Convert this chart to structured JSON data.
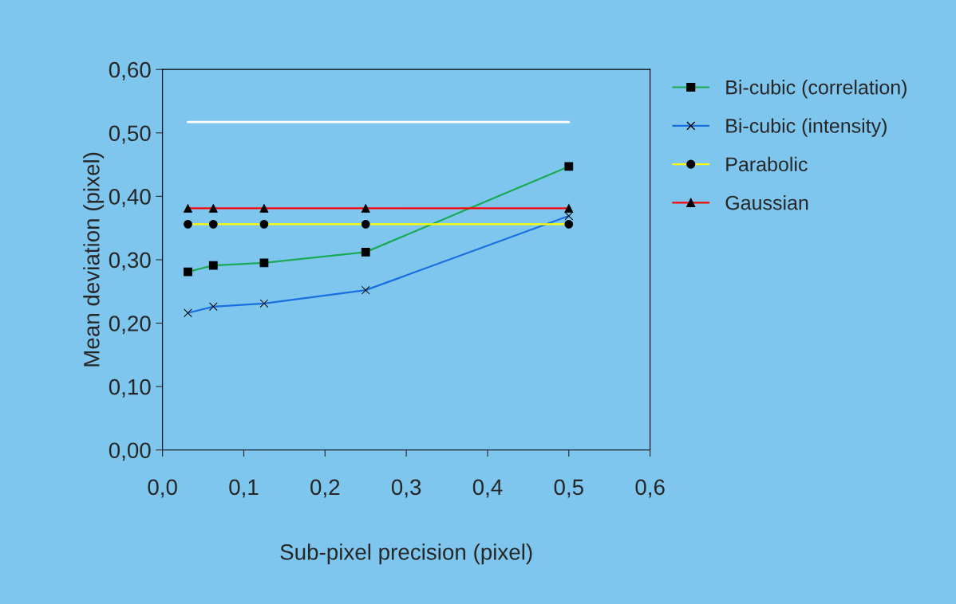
{
  "chart_data": {
    "type": "line",
    "xlabel": "Sub-pixel precision (pixel)",
    "ylabel": "Mean deviation (pixel)",
    "x": [
      0.03125,
      0.0625,
      0.125,
      0.25,
      0.5
    ],
    "series": [
      {
        "name": "Bi-cubic (correlation)",
        "color": "#1aaa55",
        "marker": "square",
        "values": [
          0.281,
          0.291,
          0.295,
          0.312,
          0.447
        ]
      },
      {
        "name": "Bi-cubic (intensity)",
        "color": "#1a6fe0",
        "marker": "cross",
        "values": [
          0.216,
          0.226,
          0.231,
          0.252,
          0.369
        ]
      },
      {
        "name": "Parabolic",
        "color": "#ffff00",
        "marker": "circle",
        "values": [
          0.356,
          0.356,
          0.356,
          0.356,
          0.356
        ]
      },
      {
        "name": "Gaussian",
        "color": "#ff0000",
        "marker": "triangle",
        "values": [
          0.381,
          0.381,
          0.381,
          0.381,
          0.381
        ]
      },
      {
        "color": "#ffffff",
        "marker": "none",
        "values": [
          0.517,
          null,
          null,
          null,
          0.517
        ]
      }
    ],
    "xlim": [
      0,
      0.6
    ],
    "ylim": [
      0,
      0.6
    ],
    "xticks": [
      {
        "value": 0,
        "label": "0,0"
      },
      {
        "value": 0.1,
        "label": "0,1"
      },
      {
        "value": 0.2,
        "label": "0,2"
      },
      {
        "value": 0.3,
        "label": "0,3"
      },
      {
        "value": 0.4,
        "label": "0,4"
      },
      {
        "value": 0.5,
        "label": "0,5"
      },
      {
        "value": 0.6,
        "label": "0,6"
      }
    ],
    "yticks": [
      {
        "value": 0,
        "label": "0,00"
      },
      {
        "value": 0.1,
        "label": "0,10"
      },
      {
        "value": 0.2,
        "label": "0,20"
      },
      {
        "value": 0.3,
        "label": "0,30"
      },
      {
        "value": 0.4,
        "label": "0,40"
      },
      {
        "value": 0.5,
        "label": "0,50"
      },
      {
        "value": 0.6,
        "label": "0,60"
      }
    ],
    "grid": false,
    "legend": "right",
    "line_style": "solid"
  }
}
